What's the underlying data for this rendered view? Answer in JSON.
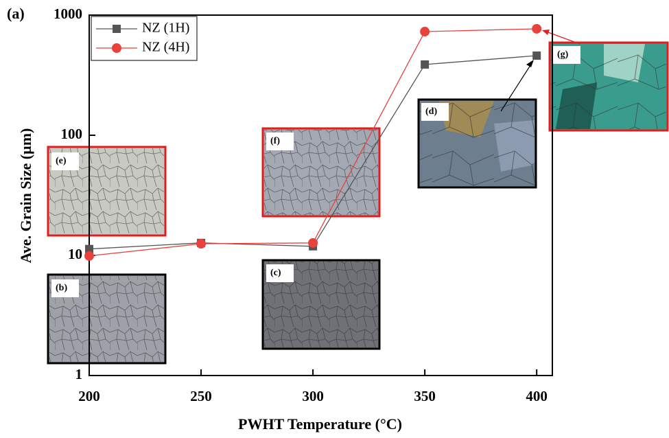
{
  "chart_data": {
    "type": "line",
    "panel_label": "(a)",
    "x_label": "PWHT Temperature (°C)",
    "y_label": "Ave. Grain Size (µm)",
    "x": [
      200,
      250,
      300,
      350,
      400
    ],
    "series": [
      {
        "name": "NZ (1H)",
        "color": "#555555",
        "marker": "square",
        "values": [
          11.3,
          12.7,
          11.9,
          388,
          460
        ]
      },
      {
        "name": "NZ (4H)",
        "color": "#e8413e",
        "marker": "circle",
        "values": [
          9.9,
          12.5,
          12.7,
          729,
          769
        ]
      }
    ],
    "xlim": [
      200,
      407
    ],
    "xticks": [
      200,
      250,
      300,
      350,
      400
    ],
    "ylim": [
      1,
      1000
    ],
    "yticks": [
      1,
      10,
      100,
      1000
    ],
    "log_y": true,
    "legend": "upper left",
    "insets": [
      {
        "label": "(e)"
      },
      {
        "label": "(b)"
      },
      {
        "label": "(f)"
      },
      {
        "label": "(c)"
      },
      {
        "label": "(d)"
      },
      {
        "label": "(g)"
      }
    ]
  }
}
